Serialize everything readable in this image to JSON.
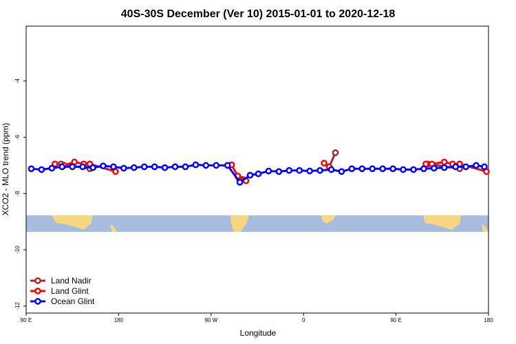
{
  "chart_data": {
    "type": "line",
    "title": "40S-30S December (Ver 10)   2015-01-01 to 2020-12-18",
    "xlabel": "Longitude",
    "ylabel": "XCO2 - MLO trend (ppm)",
    "xlim": [
      90,
      540
    ],
    "ylim": [
      -12.25,
      -2.05
    ],
    "xticks": [
      {
        "value": 90,
        "label": "90 E"
      },
      {
        "value": 180,
        "label": "180"
      },
      {
        "value": 270,
        "label": "90 W"
      },
      {
        "value": 360,
        "label": "0"
      },
      {
        "value": 450,
        "label": "90 E"
      },
      {
        "value": 540,
        "label": "180"
      }
    ],
    "yticks": [
      -12,
      -10,
      -8,
      -6,
      -4
    ],
    "legend": "bottom-left",
    "series": [
      {
        "name": "Land Nadir",
        "color": "#a52a2a",
        "x": [
          124,
          152,
          null,
          297,
          301,
          null,
          385,
          391,
          null,
          481,
          512
        ],
        "values": [
          -6.95,
          -7.12,
          null,
          -7.45,
          -7.5,
          null,
          -7.05,
          -6.55,
          null,
          -6.95,
          -7.12
        ]
      },
      {
        "name": "Land Glint",
        "color": "#ff0000",
        "x": [
          118,
          127,
          137,
          146,
          152,
          177,
          null,
          290,
          296,
          304,
          null,
          380,
          385,
          null,
          479,
          485,
          497,
          505,
          512,
          538
        ],
        "values": [
          -6.95,
          -7.0,
          -6.88,
          -6.95,
          -6.95,
          -7.22,
          null,
          -6.98,
          -7.38,
          -7.55,
          null,
          -6.92,
          -7.05,
          null,
          -6.95,
          -6.95,
          -6.88,
          -6.95,
          -6.95,
          -7.22
        ]
      },
      {
        "name": "Ocean Glint",
        "color": "#0000ff",
        "x": [
          95,
          105,
          115,
          125,
          135,
          145,
          155,
          165,
          175,
          185,
          195,
          205,
          215,
          225,
          235,
          245,
          255,
          265,
          275,
          286,
          298,
          308,
          316,
          326,
          336,
          346,
          356,
          366,
          376,
          387,
          397,
          407,
          417,
          427,
          437,
          447,
          457,
          467,
          477,
          487,
          497,
          508,
          518,
          528,
          536
        ],
        "values": [
          -7.12,
          -7.15,
          -7.1,
          -7.05,
          -7.05,
          -7.05,
          -7.08,
          -7.02,
          -7.05,
          -7.1,
          -7.08,
          -7.05,
          -7.05,
          -7.08,
          -7.05,
          -7.05,
          -6.98,
          -7.0,
          -7.0,
          -7.0,
          -7.6,
          -7.35,
          -7.3,
          -7.2,
          -7.22,
          -7.18,
          -7.18,
          -7.2,
          -7.18,
          -7.15,
          -7.22,
          -7.12,
          -7.12,
          -7.12,
          -7.12,
          -7.12,
          -7.15,
          -7.15,
          -7.12,
          -7.1,
          -7.08,
          -7.05,
          -7.05,
          -7.0,
          -7.05
        ]
      }
    ]
  }
}
